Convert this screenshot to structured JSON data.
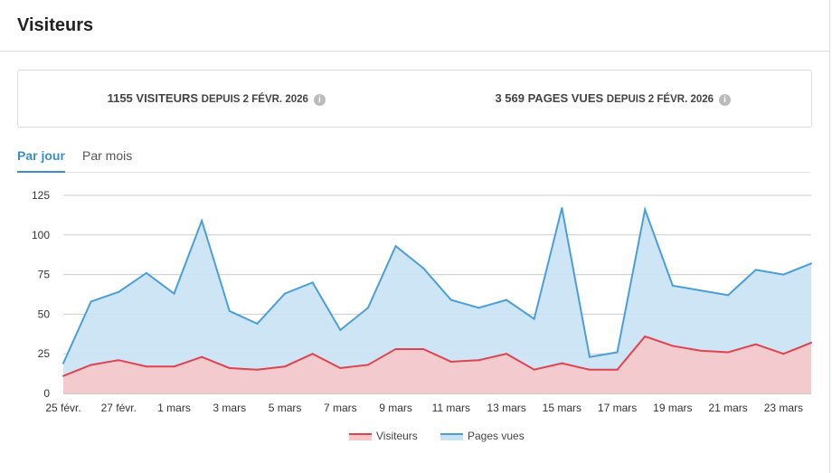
{
  "header": {
    "title": "Visiteurs"
  },
  "stats": [
    {
      "value": "1155 VISITEURS",
      "sub": "DEPUIS 2 FÉVR. 2026",
      "icon": "info-icon"
    },
    {
      "value": "3 569 PAGES VUES",
      "sub": "DEPUIS 2 FÉVR. 2026",
      "icon": "info-icon"
    }
  ],
  "tabs": [
    {
      "label": "Par jour",
      "active": true
    },
    {
      "label": "Par mois",
      "active": false
    }
  ],
  "chart_data": {
    "type": "area",
    "x": [
      "25 févr.",
      "26 févr.",
      "27 févr.",
      "28 févr.",
      "1 mars",
      "2 mars",
      "3 mars",
      "4 mars",
      "5 mars",
      "6 mars",
      "7 mars",
      "8 mars",
      "9 mars",
      "10 mars",
      "11 mars",
      "12 mars",
      "13 mars",
      "14 mars",
      "15 mars",
      "16 mars",
      "17 mars",
      "18 mars",
      "19 mars",
      "20 mars",
      "21 mars",
      "22 mars",
      "23 mars",
      "24 mars"
    ],
    "xticks": [
      "25 févr.",
      "27 févr.",
      "1 mars",
      "3 mars",
      "5 mars",
      "7 mars",
      "9 mars",
      "11 mars",
      "13 mars",
      "15 mars",
      "17 mars",
      "19 mars",
      "21 mars",
      "23 mars"
    ],
    "yticks": [
      0,
      25,
      50,
      75,
      100,
      125
    ],
    "ylim": [
      0,
      125
    ],
    "grid": true,
    "legend_placement": "bottom",
    "series": [
      {
        "name": "Pages vues",
        "color": "#4a9fd8",
        "fill": "#c9e2f4",
        "values": [
          19,
          58,
          64,
          76,
          63,
          109,
          52,
          44,
          63,
          70,
          40,
          54,
          93,
          79,
          59,
          54,
          59,
          47,
          117,
          23,
          26,
          116,
          68,
          65,
          62,
          78,
          75,
          82
        ]
      },
      {
        "name": "Visiteurs",
        "color": "#e0434f",
        "fill": "#f7c6c9",
        "values": [
          11,
          18,
          21,
          17,
          17,
          23,
          16,
          15,
          17,
          25,
          16,
          18,
          28,
          28,
          20,
          21,
          25,
          15,
          19,
          15,
          15,
          36,
          30,
          27,
          26,
          31,
          25,
          32
        ]
      }
    ],
    "legend": [
      "Visiteurs",
      "Pages vues"
    ]
  }
}
